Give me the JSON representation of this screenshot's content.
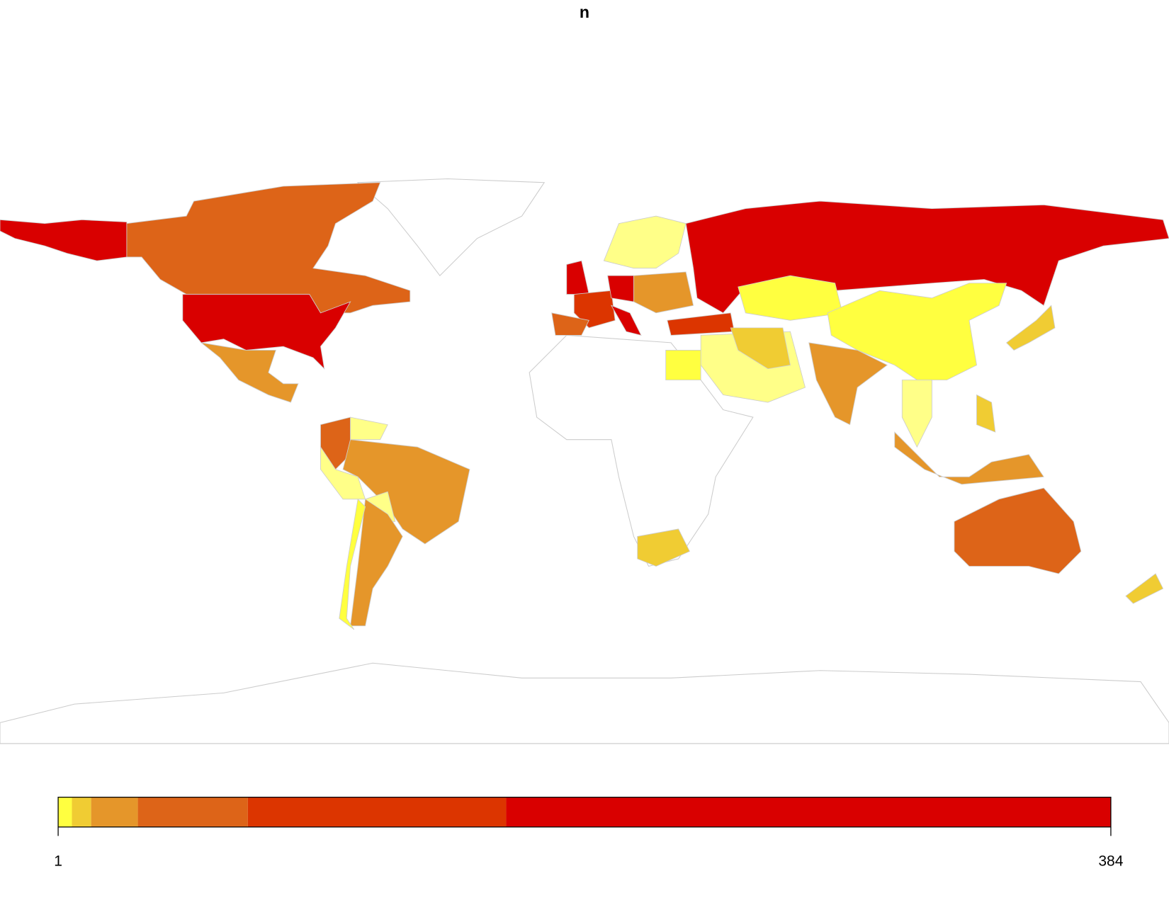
{
  "chart_data": {
    "type": "choropleth",
    "title": "n",
    "xlim": [
      1,
      384
    ],
    "xticks": [
      1,
      384
    ],
    "breaks": [
      1,
      6,
      13,
      30,
      70,
      164,
      384
    ],
    "colors": [
      "#ffff40",
      "#f0cc33",
      "#e5962a",
      "#dd6418",
      "#dc3500",
      "#d90000"
    ]
  }
}
